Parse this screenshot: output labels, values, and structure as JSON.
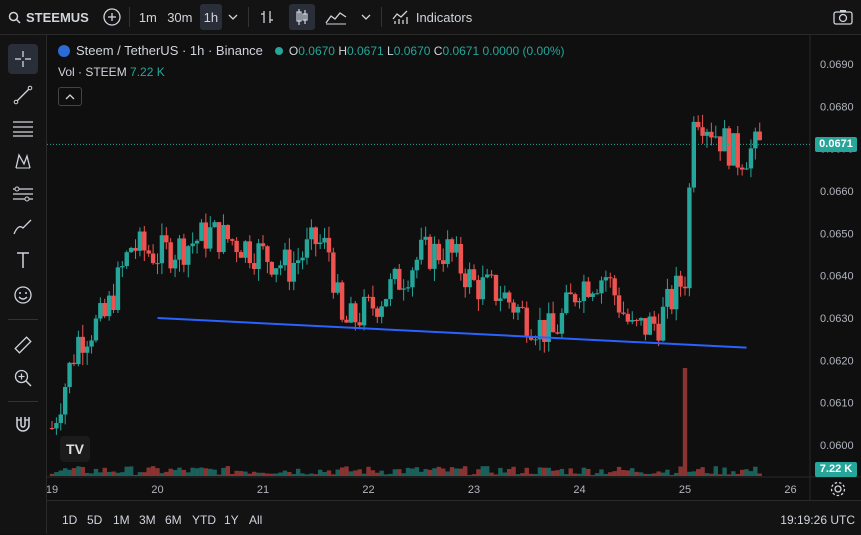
{
  "toolbar": {
    "symbol": "STEEMUS",
    "intervals": [
      "1m",
      "30m",
      "1h"
    ],
    "active_interval": "1h",
    "indicators_label": "Indicators"
  },
  "legend": {
    "title": "Steem / TetherUS · 1h · Binance",
    "o_label": "O",
    "o": "0.0670",
    "h_label": "H",
    "h": "0.0671",
    "l_label": "L",
    "l": "0.0670",
    "c_label": "C",
    "c": "0.0671",
    "change": "0.0000 (0.00%)",
    "vol_label": "Vol · STEEM",
    "vol_value": "7.22 K"
  },
  "bottom": {
    "ranges": [
      "1D",
      "5D",
      "1M",
      "3M",
      "6M",
      "YTD",
      "1Y",
      "All"
    ],
    "clock": "19:19:26 UTC"
  },
  "colors": {
    "up": "#26a69a",
    "down": "#ef5350",
    "trendline": "#2962ff",
    "bg": "#0f0f0f"
  },
  "chart_data": {
    "type": "candlestick",
    "x_ticks": [
      "19",
      "20",
      "21",
      "22",
      "23",
      "24",
      "25",
      "26"
    ],
    "y_ticks": [
      "0.0690",
      "0.0680",
      "0.0670",
      "0.0660",
      "0.0650",
      "0.0640",
      "0.0630",
      "0.0620",
      "0.0610",
      "0.0600"
    ],
    "ylim": [
      0.0596,
      0.0696
    ],
    "last_price": "0.0671",
    "last_volume": "7.22 K",
    "trendline": {
      "start": [
        "20",
        0.063
      ],
      "end": [
        "25 ~14:00",
        0.0623
      ]
    },
    "close_path": [
      [
        "19 00:00",
        0.0604
      ],
      [
        "19 06:00",
        0.0625
      ],
      [
        "19 12:00",
        0.063
      ],
      [
        "19 18:00",
        0.0647
      ],
      [
        "20 00:00",
        0.0645
      ],
      [
        "20 06:00",
        0.0647
      ],
      [
        "20 12:00",
        0.065
      ],
      [
        "20 18:00",
        0.0648
      ],
      [
        "21 00:00",
        0.0645
      ],
      [
        "21 06:00",
        0.0642
      ],
      [
        "21 12:00",
        0.0648
      ],
      [
        "21 15:00",
        0.0646
      ],
      [
        "21 18:00",
        0.0628
      ],
      [
        "22 00:00",
        0.0632
      ],
      [
        "22 06:00",
        0.0638
      ],
      [
        "22 12:00",
        0.0645
      ],
      [
        "22 18:00",
        0.0646
      ],
      [
        "23 00:00",
        0.0638
      ],
      [
        "23 06:00",
        0.0636
      ],
      [
        "23 12:00",
        0.063
      ],
      [
        "23 18:00",
        0.0626
      ],
      [
        "24 00:00",
        0.0638
      ],
      [
        "24 06:00",
        0.064
      ],
      [
        "24 12:00",
        0.0627
      ],
      [
        "24 18:00",
        0.0629
      ],
      [
        "25 00:00",
        0.064
      ],
      [
        "25 02:00",
        0.068
      ],
      [
        "25 06:00",
        0.0675
      ],
      [
        "25 12:00",
        0.0668
      ],
      [
        "25 18:00",
        0.0671
      ]
    ],
    "volume_spike": {
      "x": "25 00:00",
      "relative": 1.0
    }
  }
}
